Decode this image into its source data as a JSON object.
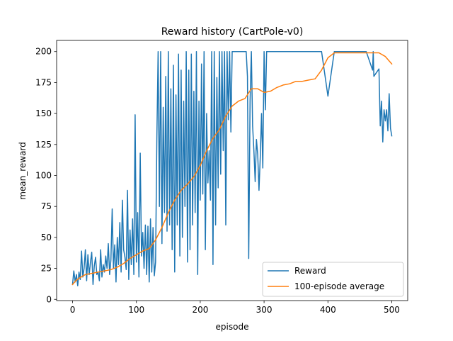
{
  "chart_data": {
    "type": "line",
    "title": "Reward history (CartPole-v0)",
    "xlabel": "episode",
    "ylabel": "mean_reward",
    "xlim": [
      -25,
      525
    ],
    "ylim": [
      -1,
      209
    ],
    "xticks": [
      0,
      100,
      200,
      300,
      400,
      500
    ],
    "yticks": [
      0,
      25,
      50,
      75,
      100,
      125,
      150,
      175,
      200
    ],
    "grid": false,
    "legend_position": "lower-right",
    "series": [
      {
        "name": "Reward",
        "color": "#1f77b4",
        "x": [
          0,
          2,
          4,
          6,
          8,
          10,
          12,
          14,
          16,
          18,
          20,
          22,
          24,
          26,
          28,
          30,
          32,
          34,
          36,
          38,
          40,
          42,
          44,
          46,
          48,
          50,
          52,
          54,
          56,
          58,
          60,
          62,
          64,
          66,
          68,
          70,
          72,
          74,
          76,
          78,
          80,
          82,
          84,
          86,
          88,
          90,
          92,
          94,
          96,
          98,
          100,
          102,
          104,
          106,
          108,
          110,
          112,
          114,
          116,
          118,
          120,
          122,
          124,
          126,
          128,
          130,
          132,
          134,
          136,
          138,
          140,
          142,
          144,
          146,
          148,
          150,
          152,
          154,
          156,
          158,
          160,
          162,
          164,
          166,
          168,
          170,
          172,
          174,
          176,
          178,
          180,
          182,
          184,
          186,
          188,
          190,
          192,
          194,
          196,
          198,
          200,
          202,
          204,
          206,
          208,
          210,
          212,
          214,
          216,
          218,
          220,
          222,
          224,
          226,
          228,
          230,
          232,
          234,
          236,
          238,
          240,
          242,
          244,
          246,
          248,
          250,
          252,
          254,
          256,
          258,
          260,
          262,
          264,
          266,
          268,
          270,
          272,
          274,
          276,
          278,
          280,
          282,
          284,
          286,
          288,
          290,
          292,
          294,
          296,
          298,
          300,
          302,
          304,
          306,
          308,
          310,
          315,
          320,
          330,
          340,
          350,
          360,
          370,
          380,
          390,
          400,
          410,
          411,
          412,
          420,
          430,
          440,
          460,
          470,
          471,
          472,
          480,
          482,
          484,
          486,
          488,
          490,
          492,
          494,
          496,
          498,
          500
        ],
        "values": [
          12,
          23,
          14,
          20,
          11,
          22,
          16,
          39,
          18,
          25,
          40,
          15,
          36,
          20,
          30,
          38,
          12,
          27,
          34,
          20,
          22,
          15,
          40,
          18,
          28,
          22,
          35,
          25,
          45,
          20,
          32,
          73,
          25,
          44,
          14,
          50,
          28,
          62,
          22,
          80,
          40,
          34,
          24,
          88,
          16,
          56,
          28,
          65,
          20,
          149,
          30,
          70,
          18,
          118,
          35,
          54,
          25,
          60,
          20,
          59,
          14,
          65,
          22,
          58,
          19,
          30,
          130,
          200,
          75,
          200,
          45,
          155,
          70,
          180,
          55,
          200,
          60,
          170,
          40,
          189,
          22,
          165,
          60,
          198,
          35,
          185,
          50,
          160,
          75,
          200,
          30,
          185,
          40,
          198,
          60,
          168,
          70,
          200,
          20,
          160,
          80,
          190,
          85,
          200,
          40,
          150,
          94,
          120,
          80,
          200,
          28,
          200,
          60,
          179,
          90,
          200,
          101,
          200,
          120,
          200,
          60,
          200,
          145,
          200,
          135,
          200,
          200,
          200,
          200,
          200,
          200,
          200,
          200,
          200,
          200,
          200,
          200,
          180,
          33,
          160,
          200,
          140,
          120,
          95,
          129,
          117,
          88,
          115,
          150,
          106,
          200,
          153,
          200,
          200,
          200,
          200,
          200,
          200,
          200,
          200,
          200,
          200,
          200,
          200,
          200,
          164,
          200,
          200,
          200,
          200,
          200,
          200,
          200,
          185,
          200,
          180,
          186,
          140,
          160,
          127,
          153,
          144,
          153,
          136,
          166,
          138,
          132
        ]
      },
      {
        "name": "100-episode average",
        "color": "#ff7f0e",
        "x": [
          0,
          5,
          10,
          20,
          30,
          40,
          50,
          60,
          70,
          80,
          90,
          100,
          110,
          120,
          130,
          140,
          150,
          160,
          170,
          180,
          190,
          200,
          210,
          220,
          230,
          240,
          250,
          260,
          270,
          280,
          290,
          300,
          310,
          320,
          330,
          340,
          350,
          360,
          370,
          380,
          390,
          400,
          410,
          420,
          430,
          440,
          450,
          460,
          470,
          480,
          490,
          500
        ],
        "values": [
          12,
          15,
          17,
          20,
          21,
          22,
          23,
          24,
          26,
          29,
          33,
          36,
          39,
          41,
          48,
          58,
          70,
          80,
          88,
          93,
          99,
          108,
          120,
          130,
          137,
          148,
          156,
          160,
          162,
          170,
          170,
          167,
          168,
          171,
          173,
          174,
          176,
          176,
          177,
          178,
          185,
          195,
          199,
          199,
          199,
          199,
          199,
          199,
          199,
          199,
          196,
          190
        ]
      }
    ]
  }
}
